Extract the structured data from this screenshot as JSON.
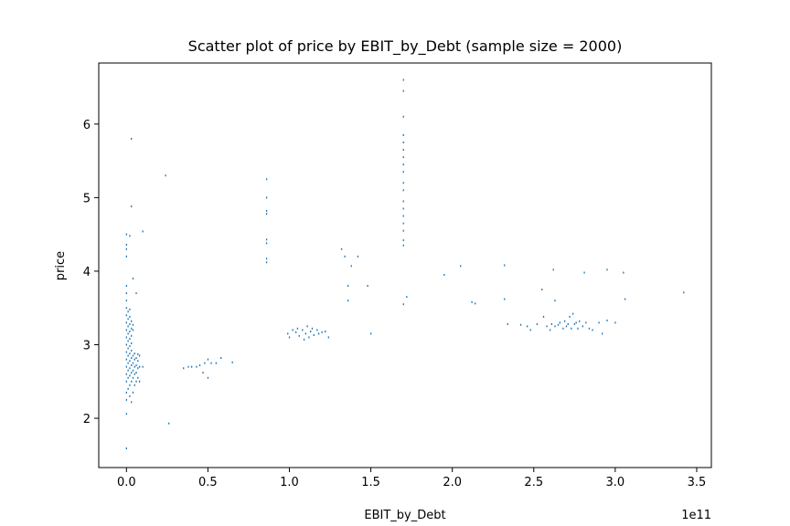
{
  "chart_data": {
    "type": "scatter",
    "title": "Scatter plot of price by EBIT_by_Debt (sample size = 2000)",
    "xlabel": "EBIT_by_Debt",
    "ylabel": "price",
    "x_offset_label": "1e11",
    "x_unit_multiplier": 100000000000,
    "xlim": [
      -0.17,
      3.59
    ],
    "ylim": [
      1.33,
      6.83
    ],
    "x_ticks": [
      0.0,
      0.5,
      1.0,
      1.5,
      2.0,
      2.5,
      3.0,
      3.5
    ],
    "x_tick_labels": [
      "0.0",
      "0.5",
      "1.0",
      "1.5",
      "2.0",
      "2.5",
      "3.0",
      "3.5"
    ],
    "y_ticks": [
      2,
      3,
      4,
      5,
      6
    ],
    "y_tick_labels": [
      "2",
      "3",
      "4",
      "5",
      "6"
    ],
    "grid": false,
    "point_color": "#1f77b4",
    "series": [
      {
        "values": [
          [
            0.0,
            1.59
          ],
          [
            0.0,
            2.06
          ],
          [
            0.0,
            2.25
          ],
          [
            0.0,
            2.35
          ],
          [
            0.0,
            2.5
          ],
          [
            0.0,
            2.6
          ],
          [
            0.0,
            2.7
          ],
          [
            0.0,
            2.8
          ],
          [
            0.0,
            2.9
          ],
          [
            0.0,
            3.0
          ],
          [
            0.0,
            3.1
          ],
          [
            0.0,
            3.2
          ],
          [
            0.0,
            3.3
          ],
          [
            0.0,
            3.4
          ],
          [
            0.0,
            3.5
          ],
          [
            0.0,
            3.6
          ],
          [
            0.0,
            3.7
          ],
          [
            0.0,
            3.8
          ],
          [
            0.0,
            4.2
          ],
          [
            0.0,
            4.3
          ],
          [
            0.0,
            4.36
          ],
          [
            0.0,
            4.5
          ],
          [
            0.01,
            2.4
          ],
          [
            0.01,
            2.55
          ],
          [
            0.01,
            2.65
          ],
          [
            0.01,
            2.75
          ],
          [
            0.01,
            2.85
          ],
          [
            0.01,
            2.95
          ],
          [
            0.01,
            3.05
          ],
          [
            0.01,
            3.15
          ],
          [
            0.01,
            3.25
          ],
          [
            0.01,
            3.35
          ],
          [
            0.01,
            3.45
          ],
          [
            0.02,
            2.3
          ],
          [
            0.02,
            2.45
          ],
          [
            0.02,
            2.58
          ],
          [
            0.02,
            2.68
          ],
          [
            0.02,
            2.78
          ],
          [
            0.02,
            2.88
          ],
          [
            0.02,
            2.98
          ],
          [
            0.02,
            3.08
          ],
          [
            0.02,
            3.18
          ],
          [
            0.02,
            3.28
          ],
          [
            0.02,
            3.38
          ],
          [
            0.02,
            3.48
          ],
          [
            0.02,
            4.48
          ],
          [
            0.03,
            2.22
          ],
          [
            0.03,
            2.5
          ],
          [
            0.03,
            2.62
          ],
          [
            0.03,
            2.72
          ],
          [
            0.03,
            2.82
          ],
          [
            0.03,
            2.92
          ],
          [
            0.03,
            3.02
          ],
          [
            0.03,
            3.12
          ],
          [
            0.03,
            3.22
          ],
          [
            0.03,
            3.32
          ],
          [
            0.03,
            4.88
          ],
          [
            0.03,
            5.8
          ],
          [
            0.04,
            2.35
          ],
          [
            0.04,
            2.55
          ],
          [
            0.04,
            2.65
          ],
          [
            0.04,
            2.75
          ],
          [
            0.04,
            2.85
          ],
          [
            0.04,
            3.2
          ],
          [
            0.04,
            3.27
          ],
          [
            0.04,
            3.9
          ],
          [
            0.05,
            2.45
          ],
          [
            0.05,
            2.6
          ],
          [
            0.05,
            2.7
          ],
          [
            0.05,
            2.8
          ],
          [
            0.05,
            2.88
          ],
          [
            0.06,
            2.5
          ],
          [
            0.06,
            2.62
          ],
          [
            0.06,
            2.72
          ],
          [
            0.06,
            2.82
          ],
          [
            0.06,
            3.7
          ],
          [
            0.07,
            2.55
          ],
          [
            0.07,
            2.68
          ],
          [
            0.07,
            2.78
          ],
          [
            0.07,
            2.87
          ],
          [
            0.08,
            2.5
          ],
          [
            0.08,
            2.7
          ],
          [
            0.08,
            2.85
          ],
          [
            0.1,
            2.7
          ],
          [
            0.1,
            4.54
          ],
          [
            0.24,
            5.3
          ],
          [
            0.26,
            1.93
          ],
          [
            0.35,
            2.68
          ],
          [
            0.38,
            2.7
          ],
          [
            0.4,
            2.7
          ],
          [
            0.43,
            2.7
          ],
          [
            0.45,
            2.72
          ],
          [
            0.47,
            2.62
          ],
          [
            0.48,
            2.75
          ],
          [
            0.5,
            2.55
          ],
          [
            0.5,
            2.8
          ],
          [
            0.52,
            2.75
          ],
          [
            0.55,
            2.75
          ],
          [
            0.58,
            2.82
          ],
          [
            0.65,
            2.76
          ],
          [
            0.86,
            4.12
          ],
          [
            0.86,
            4.17
          ],
          [
            0.86,
            4.38
          ],
          [
            0.86,
            4.43
          ],
          [
            0.86,
            4.78
          ],
          [
            0.86,
            4.82
          ],
          [
            0.86,
            5.0
          ],
          [
            0.86,
            5.25
          ],
          [
            0.99,
            3.15
          ],
          [
            1.0,
            3.1
          ],
          [
            1.02,
            3.2
          ],
          [
            1.04,
            3.17
          ],
          [
            1.05,
            3.22
          ],
          [
            1.06,
            3.12
          ],
          [
            1.08,
            3.2
          ],
          [
            1.09,
            3.07
          ],
          [
            1.1,
            3.15
          ],
          [
            1.11,
            3.25
          ],
          [
            1.12,
            3.1
          ],
          [
            1.13,
            3.18
          ],
          [
            1.14,
            3.22
          ],
          [
            1.15,
            3.13
          ],
          [
            1.17,
            3.2
          ],
          [
            1.18,
            3.15
          ],
          [
            1.2,
            3.17
          ],
          [
            1.22,
            3.18
          ],
          [
            1.24,
            3.1
          ],
          [
            1.32,
            4.3
          ],
          [
            1.34,
            4.2
          ],
          [
            1.36,
            3.8
          ],
          [
            1.36,
            3.6
          ],
          [
            1.38,
            4.07
          ],
          [
            1.42,
            4.2
          ],
          [
            1.48,
            3.8
          ],
          [
            1.5,
            3.15
          ],
          [
            1.7,
            3.55
          ],
          [
            1.7,
            4.35
          ],
          [
            1.7,
            4.42
          ],
          [
            1.7,
            4.55
          ],
          [
            1.7,
            4.65
          ],
          [
            1.7,
            4.75
          ],
          [
            1.7,
            4.85
          ],
          [
            1.7,
            4.95
          ],
          [
            1.7,
            5.1
          ],
          [
            1.7,
            5.2
          ],
          [
            1.7,
            5.35
          ],
          [
            1.7,
            5.45
          ],
          [
            1.7,
            5.55
          ],
          [
            1.7,
            5.65
          ],
          [
            1.7,
            5.75
          ],
          [
            1.7,
            5.85
          ],
          [
            1.7,
            6.1
          ],
          [
            1.7,
            6.45
          ],
          [
            1.7,
            6.6
          ],
          [
            1.72,
            3.65
          ],
          [
            1.95,
            3.95
          ],
          [
            2.05,
            4.07
          ],
          [
            2.12,
            3.58
          ],
          [
            2.14,
            3.56
          ],
          [
            2.32,
            3.62
          ],
          [
            2.32,
            4.08
          ],
          [
            2.34,
            3.28
          ],
          [
            2.42,
            3.27
          ],
          [
            2.46,
            3.25
          ],
          [
            2.48,
            3.2
          ],
          [
            2.52,
            3.28
          ],
          [
            2.55,
            3.75
          ],
          [
            2.56,
            3.38
          ],
          [
            2.58,
            3.25
          ],
          [
            2.6,
            3.2
          ],
          [
            2.61,
            3.28
          ],
          [
            2.62,
            4.02
          ],
          [
            2.63,
            3.25
          ],
          [
            2.63,
            3.6
          ],
          [
            2.65,
            3.27
          ],
          [
            2.66,
            3.3
          ],
          [
            2.68,
            3.22
          ],
          [
            2.69,
            3.32
          ],
          [
            2.7,
            3.25
          ],
          [
            2.71,
            3.28
          ],
          [
            2.72,
            3.38
          ],
          [
            2.73,
            3.22
          ],
          [
            2.74,
            3.42
          ],
          [
            2.75,
            3.28
          ],
          [
            2.76,
            3.3
          ],
          [
            2.77,
            3.22
          ],
          [
            2.78,
            3.32
          ],
          [
            2.8,
            3.25
          ],
          [
            2.81,
            3.98
          ],
          [
            2.82,
            3.3
          ],
          [
            2.84,
            3.22
          ],
          [
            2.86,
            3.2
          ],
          [
            2.9,
            3.3
          ],
          [
            2.92,
            3.15
          ],
          [
            2.95,
            3.33
          ],
          [
            2.95,
            4.02
          ],
          [
            3.0,
            3.3
          ],
          [
            3.05,
            3.98
          ],
          [
            3.06,
            3.62
          ],
          [
            3.42,
            3.71
          ]
        ]
      }
    ]
  }
}
